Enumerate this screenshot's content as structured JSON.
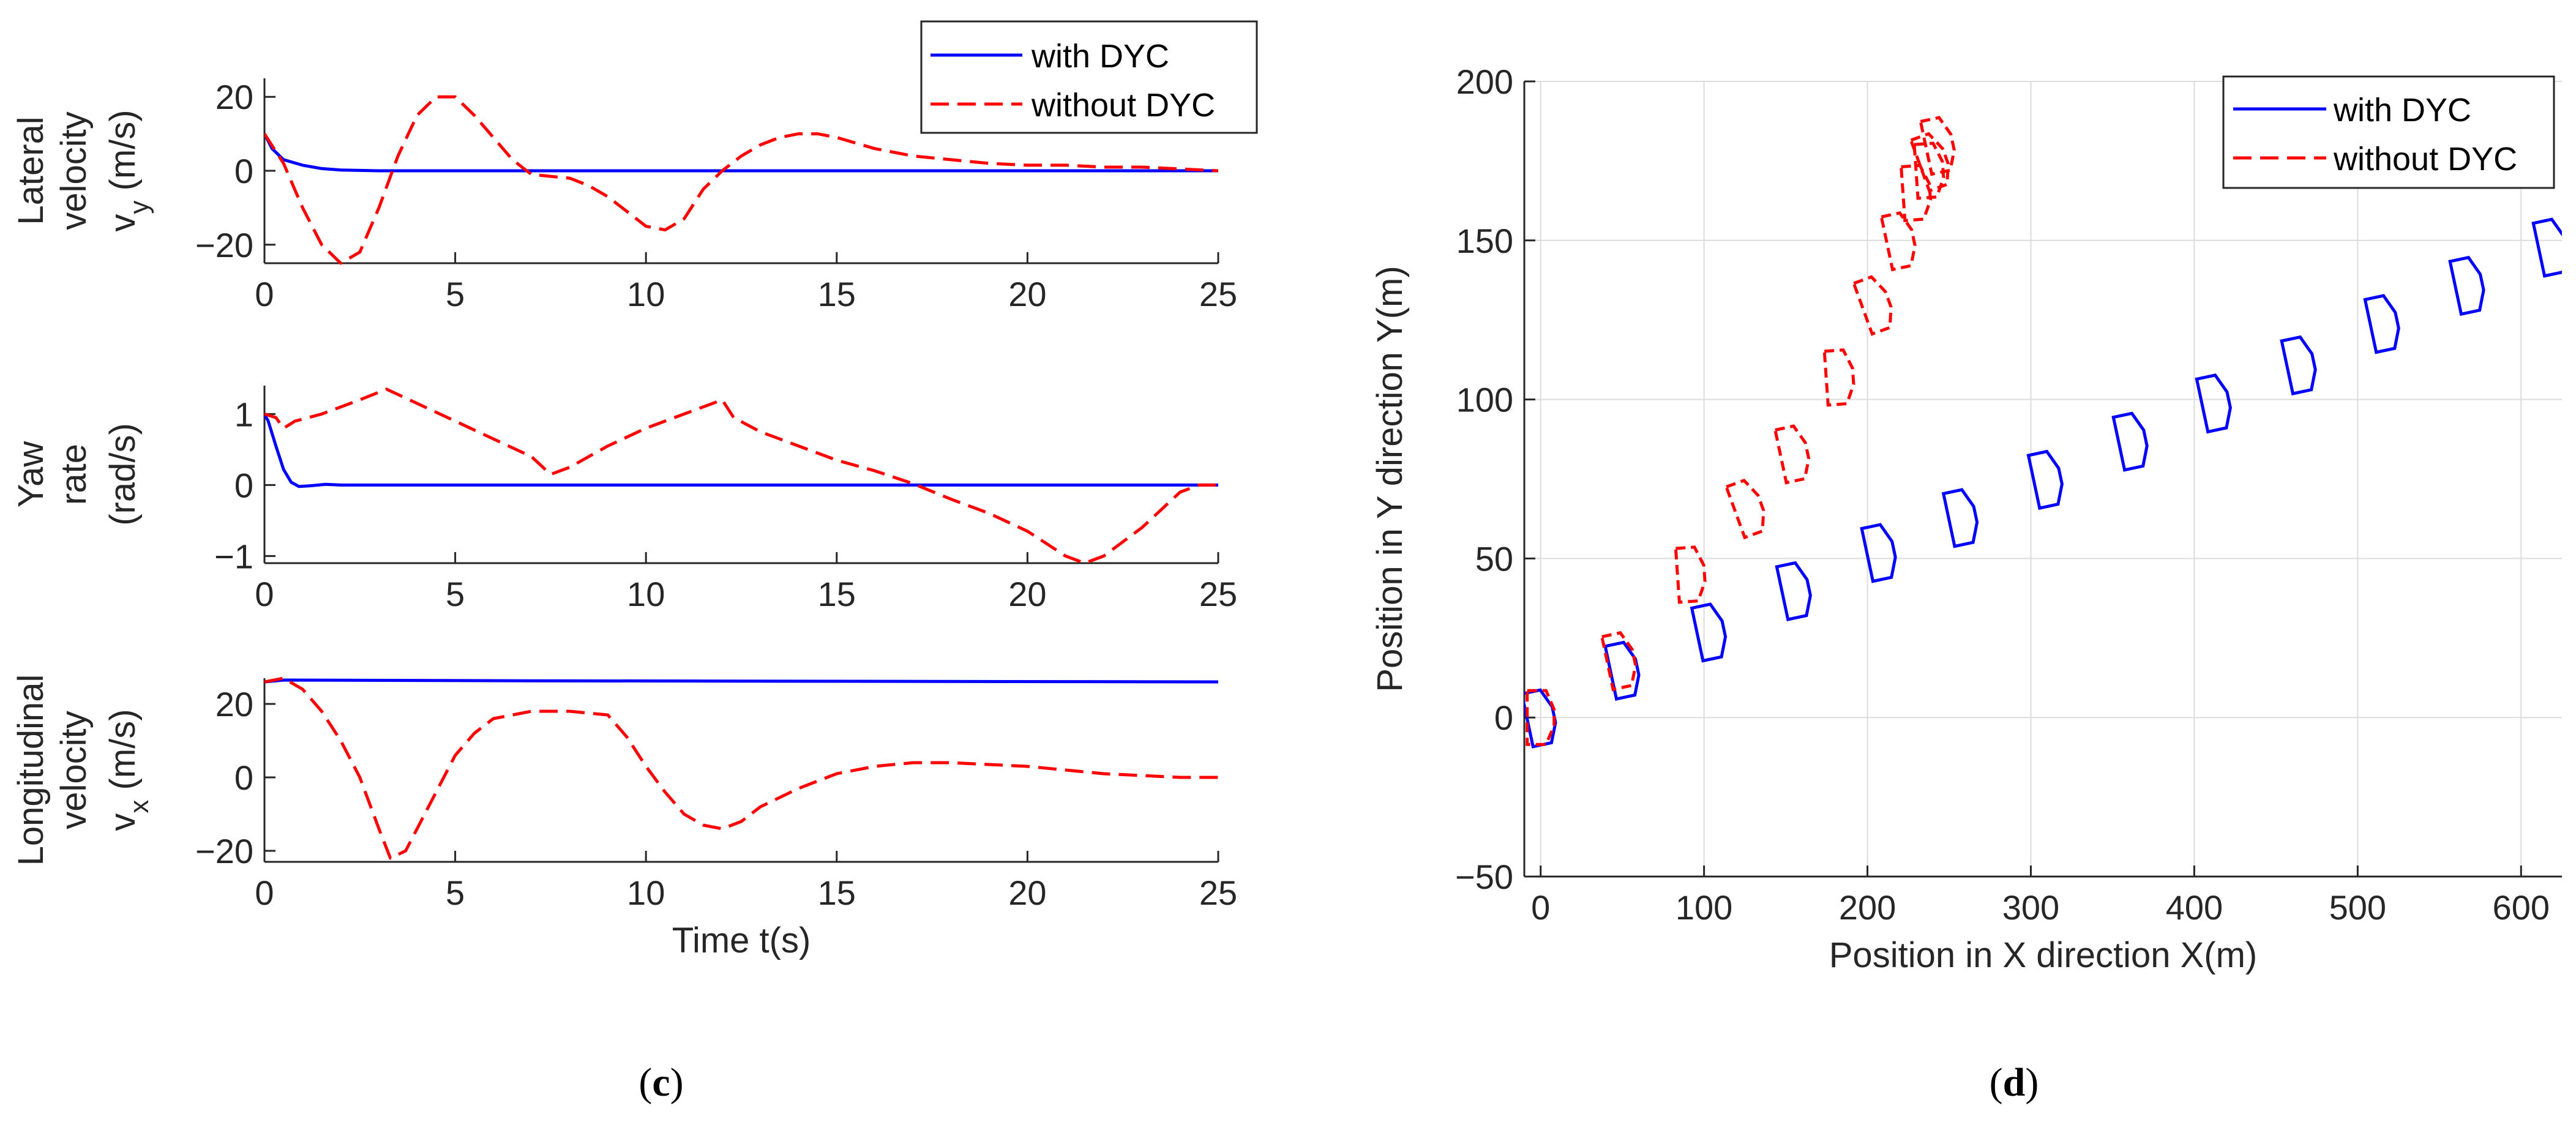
{
  "colors": {
    "with": "#0000ff",
    "without": "#ff0000",
    "grid": "#dcdcdc",
    "axis": "#262626"
  },
  "legend": {
    "with_label": "with DYC",
    "without_label": "without DYC"
  },
  "captions": {
    "c": "c",
    "d": "d"
  },
  "chart_data": [
    {
      "id": "lateral",
      "type": "line",
      "ylabel_lines": [
        "Lateral",
        "velocity",
        "v",
        "y",
        "(m/s)"
      ],
      "xlim": [
        0,
        25
      ],
      "ylim": [
        -25,
        25
      ],
      "xticks": [
        "0",
        "5",
        "10",
        "15",
        "20",
        "25"
      ],
      "yticks": [
        "-20",
        "0",
        "20"
      ],
      "series": [
        {
          "name": "with DYC",
          "x": [
            0,
            0.2,
            0.5,
            1,
            1.5,
            2,
            2.5,
            3,
            25
          ],
          "y": [
            10,
            6,
            3,
            1.5,
            0.6,
            0.2,
            0.1,
            0,
            0
          ]
        },
        {
          "name": "without DYC",
          "x": [
            0,
            0.5,
            1,
            1.5,
            2,
            2.5,
            3,
            3.5,
            4,
            4.5,
            5,
            5.5,
            6,
            6.5,
            7,
            7.5,
            8,
            8.5,
            9,
            9.5,
            10,
            10.5,
            11,
            11.5,
            12,
            12.5,
            13,
            13.5,
            14,
            14.5,
            15,
            16,
            17,
            18,
            19,
            20,
            21,
            22,
            23,
            24,
            25
          ],
          "y": [
            10,
            2,
            -10,
            -20,
            -25,
            -22,
            -10,
            4,
            15,
            20,
            20,
            15,
            9,
            3,
            -1,
            -1.5,
            -2,
            -4,
            -7,
            -11,
            -15,
            -16,
            -13,
            -5,
            0,
            4,
            7,
            9,
            10,
            10,
            9,
            6,
            4,
            3,
            2,
            1.5,
            1.5,
            1,
            1,
            0.5,
            0
          ]
        }
      ]
    },
    {
      "id": "yaw",
      "type": "line",
      "ylabel_lines": [
        "Yaw",
        "rate",
        "(rad/s)"
      ],
      "xlim": [
        0,
        25
      ],
      "ylim": [
        -1.1,
        1.4
      ],
      "xticks": [
        "0",
        "5",
        "10",
        "15",
        "20",
        "25"
      ],
      "yticks": [
        "-1",
        "0",
        "1"
      ],
      "series": [
        {
          "name": "with DYC",
          "x": [
            0,
            0.1,
            0.3,
            0.5,
            0.7,
            0.9,
            1.2,
            1.6,
            2,
            25
          ],
          "y": [
            1,
            0.9,
            0.55,
            0.22,
            0.04,
            -0.02,
            -0.01,
            0.01,
            0,
            0
          ]
        },
        {
          "name": "without DYC",
          "x": [
            0,
            0.3,
            0.5,
            0.8,
            1.5,
            2.5,
            3.2,
            4,
            5,
            6,
            7,
            7.5,
            8,
            9,
            10,
            11,
            12,
            12.3,
            13,
            14,
            15,
            16,
            17,
            18,
            19,
            20,
            21,
            21.5,
            22,
            23,
            24,
            24.5,
            25
          ],
          "y": [
            1,
            0.95,
            0.8,
            0.9,
            1.0,
            1.2,
            1.35,
            1.15,
            0.9,
            0.65,
            0.4,
            0.15,
            0.25,
            0.55,
            0.8,
            1.0,
            1.2,
            0.95,
            0.75,
            0.55,
            0.35,
            0.2,
            0.02,
            -0.2,
            -0.4,
            -0.65,
            -1.0,
            -1.1,
            -1.0,
            -0.6,
            -0.1,
            0,
            0
          ]
        }
      ]
    },
    {
      "id": "longitudinal",
      "type": "line",
      "ylabel_lines": [
        "Longitudinal",
        "velocity",
        "v",
        "x",
        "(m/s)"
      ],
      "xlabel": "Time t(s)",
      "xlim": [
        0,
        25
      ],
      "ylim": [
        -23,
        27
      ],
      "xticks": [
        "0",
        "5",
        "10",
        "15",
        "20",
        "25"
      ],
      "yticks": [
        "-20",
        "0",
        "20"
      ],
      "series": [
        {
          "name": "with DYC",
          "x": [
            0,
            0.5,
            7,
            25
          ],
          "y": [
            26,
            26.5,
            26.3,
            26
          ]
        },
        {
          "name": "without DYC",
          "x": [
            0,
            0.5,
            1,
            1.5,
            2,
            2.5,
            3,
            3.3,
            3.7,
            4,
            4.5,
            5,
            5.5,
            6,
            7,
            8,
            9,
            9.5,
            10,
            10.5,
            11,
            11.5,
            12,
            12.5,
            13,
            14,
            15,
            16,
            17,
            18,
            19,
            20,
            21,
            22,
            23,
            24,
            25
          ],
          "y": [
            26,
            27,
            24,
            18,
            10,
            0,
            -14,
            -22,
            -20,
            -14,
            -4,
            6,
            12,
            16,
            18,
            18,
            17,
            11,
            3,
            -4,
            -10,
            -13,
            -14,
            -12,
            -8,
            -3,
            1,
            3,
            4,
            4,
            3.5,
            3,
            2,
            1,
            0.5,
            0,
            0
          ]
        }
      ]
    },
    {
      "id": "trajectory",
      "type": "line",
      "xlabel": "Position in X direction X(m)",
      "ylabel": "Position in Y direction Y(m)",
      "xlim": [
        -10,
        625
      ],
      "ylim": [
        -50,
        200
      ],
      "xticks": [
        "0",
        "100",
        "200",
        "300",
        "400",
        "500",
        "600"
      ],
      "yticks": [
        "-50",
        "0",
        "50",
        "100",
        "150",
        "200"
      ],
      "series": [
        {
          "name": "with DYC",
          "centers": [
            [
              0,
              0
            ],
            [
              51,
              15
            ],
            [
              104,
              27
            ],
            [
              156,
              40
            ],
            [
              208,
              52
            ],
            [
              258,
              63
            ],
            [
              310,
              75
            ],
            [
              362,
              87
            ],
            [
              413,
              99
            ],
            [
              465,
              111
            ],
            [
              516,
              124
            ],
            [
              568,
              136
            ],
            [
              619,
              148
            ]
          ]
        },
        {
          "name": "without DYC",
          "centers": [
            [
              0,
              0
            ],
            [
              49,
              18
            ],
            [
              92,
              45
            ],
            [
              127,
              66
            ],
            [
              155,
              83
            ],
            [
              183,
              107
            ],
            [
              205,
              130
            ],
            [
              220,
              150
            ],
            [
              230,
              165
            ],
            [
              240,
              175
            ],
            [
              244,
              180
            ],
            [
              238,
              172
            ]
          ]
        }
      ]
    }
  ]
}
